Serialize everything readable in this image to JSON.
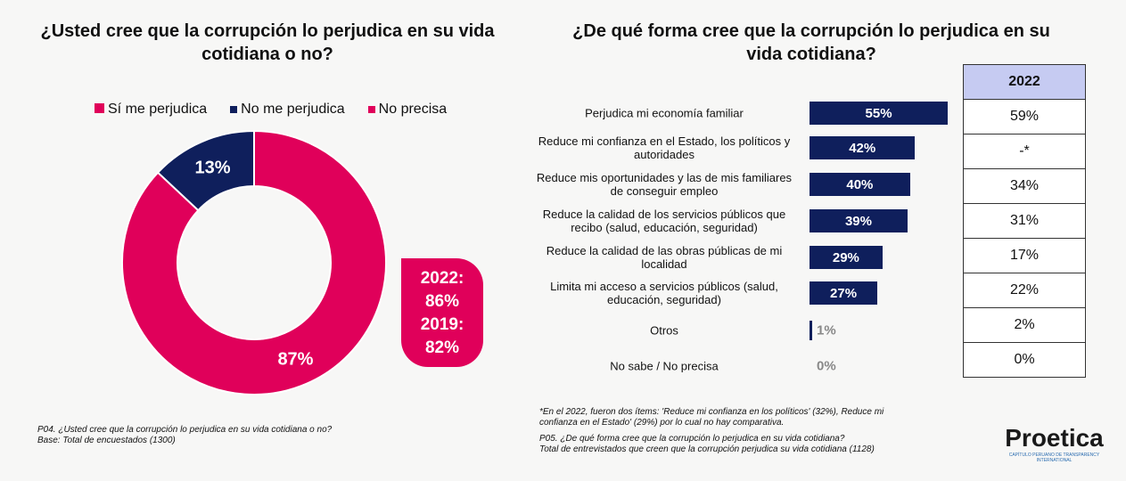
{
  "left": {
    "title": "¿Usted cree que la corrupción lo perjudica en su vida cotidiana o no?",
    "legend": [
      {
        "label": "Sí me perjudica",
        "color": "#e0005a"
      },
      {
        "label": "No me perjudica",
        "color": "#0f1f5c"
      },
      {
        "label": "No precisa",
        "color": "#e0005a"
      }
    ],
    "callout": {
      "line1": "2022:",
      "line2": "86%",
      "line3": "2019:",
      "line4": "82%"
    },
    "note1": "P04. ¿Usted cree que la corrupción lo perjudica en su vida cotidiana o no?",
    "note2": "Base: Total de encuestados  (1300)"
  },
  "chart_data": [
    {
      "type": "pie",
      "donut": true,
      "categories": [
        "Sí me perjudica",
        "No me perjudica",
        "No precisa"
      ],
      "values": [
        87,
        13,
        0
      ],
      "labels": [
        "87%",
        "13%",
        ""
      ],
      "colors": [
        "#e0005a",
        "#0f1f5c",
        "#e0005a"
      ]
    },
    {
      "type": "bar",
      "orientation": "horizontal",
      "categories": [
        "Perjudica mi economía familiar",
        "Reduce mi confianza en el Estado, los políticos y autoridades",
        "Reduce mis oportunidades y las de mis familiares de conseguir empleo",
        "Reduce la calidad de los servicios públicos que recibo (salud, educación, seguridad)",
        "Reduce la calidad de las obras públicas de mi localidad",
        "Limita mi acceso a servicios públicos (salud, educación, seguridad)",
        "Otros",
        "No sabe / No precisa"
      ],
      "values": [
        55,
        42,
        40,
        39,
        29,
        27,
        1,
        0
      ],
      "labels": [
        "55%",
        "42%",
        "40%",
        "39%",
        "29%",
        "27%",
        "1%",
        "0%"
      ],
      "color": "#0f1f5c"
    }
  ],
  "right": {
    "title": "¿De qué forma cree que la corrupción lo perjudica en su vida cotidiana?",
    "table_header": "2022",
    "table_values": [
      "59%",
      "-*",
      "34%",
      "31%",
      "17%",
      "22%",
      "2%",
      "0%"
    ],
    "note1": "*En el 2022, fueron dos ítems: 'Reduce mi confianza en los políticos' (32%), Reduce mi confianza en el Estado' (29%) por lo cual no hay comparativa.",
    "note2": "P05. ¿De qué forma cree que la corrupción lo perjudica en su vida cotidiana?",
    "note3": "Total de entrevistados que creen que la corrupción perjudica su vida cotidiana (1128)"
  },
  "logo": {
    "name": "Proetica",
    "sub": "CAPÍTULO PERUANO DE TRANSPARENCY INTERNATIONAL"
  }
}
